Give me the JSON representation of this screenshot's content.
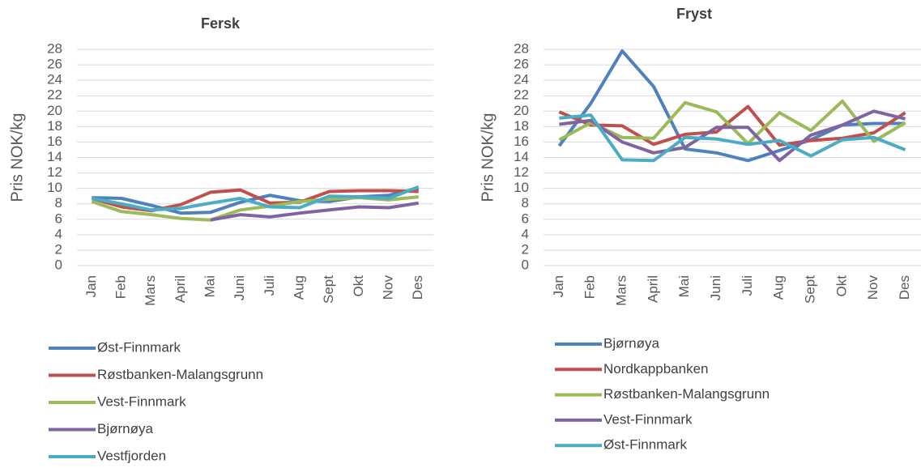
{
  "chart_data": [
    {
      "type": "line",
      "title": "Fersk",
      "y_label": "Pris NOK/kg",
      "categories": [
        "Jan",
        "Feb",
        "Mars",
        "April",
        "Mai",
        "Juni",
        "Juli",
        "Aug",
        "Sept",
        "Okt",
        "Nov",
        "Des"
      ],
      "ylim": [
        0,
        28
      ],
      "yticks": [
        0,
        2,
        4,
        6,
        8,
        10,
        12,
        14,
        16,
        18,
        20,
        22,
        24,
        26,
        28
      ],
      "grid": true,
      "series": [
        {
          "name": "Øst-Finnmark",
          "color": "#4f81bd",
          "values": [
            8.8,
            8.7,
            7.8,
            6.8,
            6.9,
            8.2,
            9.1,
            8.4,
            8.3,
            8.9,
            9.1,
            10.0
          ]
        },
        {
          "name": "Røstbanken-Malangsgrunn",
          "color": "#c0504d",
          "values": [
            8.7,
            7.6,
            7.1,
            7.9,
            9.5,
            9.8,
            8.1,
            8.2,
            9.6,
            9.7,
            9.7,
            9.6
          ]
        },
        {
          "name": "Vest-Finnmark",
          "color": "#9bbb59",
          "values": [
            8.3,
            7.0,
            6.6,
            6.1,
            5.9,
            7.2,
            7.7,
            8.3,
            8.6,
            8.8,
            8.5,
            8.9
          ]
        },
        {
          "name": "Bjørnøya",
          "color": "#8064a2",
          "values": [
            null,
            null,
            null,
            null,
            5.9,
            6.6,
            6.3,
            6.8,
            7.2,
            7.6,
            7.5,
            8.1
          ]
        },
        {
          "name": "Vestfjorden",
          "color": "#4bacc6",
          "values": [
            8.7,
            8.0,
            7.2,
            7.4,
            8.1,
            8.7,
            7.6,
            7.5,
            9.0,
            8.9,
            8.7,
            10.2
          ]
        }
      ]
    },
    {
      "type": "line",
      "title": "Fryst",
      "y_label": "Pris NOK/kg",
      "categories": [
        "Jan",
        "Feb",
        "Mars",
        "April",
        "Mai",
        "Juni",
        "Juli",
        "Aug",
        "Sept",
        "Okt",
        "Nov",
        "Des"
      ],
      "ylim": [
        0,
        28
      ],
      "yticks": [
        0,
        2,
        4,
        6,
        8,
        10,
        12,
        14,
        16,
        18,
        20,
        22,
        24,
        26,
        28
      ],
      "grid": true,
      "series": [
        {
          "name": "Bjørnøya",
          "color": "#4f81bd",
          "values": [
            15.5,
            21.0,
            27.8,
            23.2,
            15.1,
            14.6,
            13.6,
            14.9,
            16.3,
            18.2,
            18.4,
            18.4
          ]
        },
        {
          "name": "Nordkappbanken",
          "color": "#c0504d",
          "values": [
            19.9,
            18.2,
            18.1,
            15.7,
            17.0,
            17.3,
            20.6,
            15.6,
            16.2,
            16.5,
            17.2,
            19.8
          ]
        },
        {
          "name": "Røstbanken-Malangsgrunn",
          "color": "#9bbb59",
          "values": [
            16.3,
            18.5,
            16.6,
            16.5,
            21.1,
            19.9,
            15.8,
            19.8,
            17.5,
            21.3,
            16.1,
            18.5
          ]
        },
        {
          "name": "Vest-Finnmark",
          "color": "#8064a2",
          "values": [
            18.3,
            18.8,
            16.0,
            14.6,
            15.3,
            17.9,
            17.9,
            13.6,
            16.9,
            18.2,
            20.0,
            19.0
          ]
        },
        {
          "name": "Øst-Finnmark",
          "color": "#4bacc6",
          "values": [
            19.1,
            19.5,
            13.7,
            13.6,
            16.6,
            16.4,
            15.7,
            16.2,
            14.2,
            16.3,
            16.6,
            15.0
          ]
        }
      ]
    }
  ]
}
